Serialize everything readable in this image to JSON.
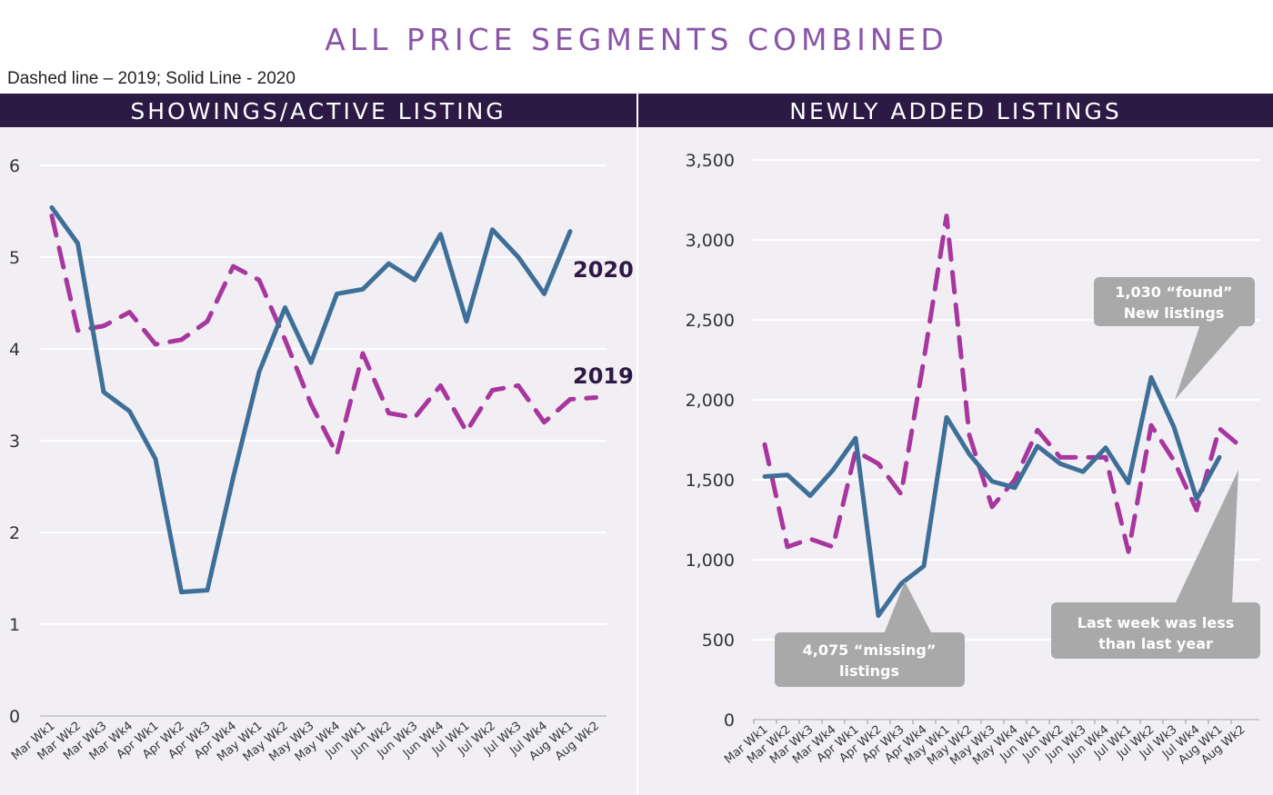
{
  "header": {
    "title": "ALL PRICE SEGMENTS COMBINED",
    "note": "Dashed line – 2019; Solid Line - 2020"
  },
  "colors": {
    "y2020": "#3e6f98",
    "y2019": "#a8369e",
    "header_bar": "#2c1a45",
    "title": "#8a55a8",
    "callout": "#a9a9a9"
  },
  "chart_data": [
    {
      "type": "line",
      "title": "SHOWINGS/ACTIVE LISTING",
      "categories": [
        "Mar Wk1",
        "Mar Wk2",
        "Mar Wk3",
        "Mar Wk4",
        "Apr Wk1",
        "Apr Wk2",
        "Apr Wk3",
        "Apr Wk4",
        "May Wk1",
        "May Wk2",
        "May Wk3",
        "May Wk4",
        "Jun Wk1",
        "Jun Wk2",
        "Jun Wk3",
        "Jun Wk4",
        "Jul Wk1",
        "Jul Wk2",
        "Jul Wk3",
        "Jul Wk4",
        "Aug Wk1",
        "Aug Wk2"
      ],
      "yticks": [
        "0",
        "1",
        "2",
        "3",
        "4",
        "5",
        "6"
      ],
      "ylim": [
        0,
        6
      ],
      "grid": true,
      "series": [
        {
          "name": "2020",
          "style": "solid",
          "values": [
            5.54,
            5.15,
            3.53,
            3.32,
            2.8,
            1.35,
            1.37,
            2.6,
            3.75,
            4.45,
            3.85,
            4.6,
            4.65,
            4.93,
            4.75,
            5.25,
            4.3,
            5.3,
            5.0,
            4.6,
            5.28,
            null
          ]
        },
        {
          "name": "2019",
          "style": "dashed",
          "values": [
            5.45,
            4.2,
            4.25,
            4.4,
            4.05,
            4.1,
            4.3,
            4.9,
            4.75,
            4.1,
            3.4,
            2.85,
            3.95,
            3.3,
            3.25,
            3.6,
            3.1,
            3.55,
            3.6,
            3.2,
            3.45,
            3.47
          ]
        }
      ]
    },
    {
      "type": "line",
      "title": "NEWLY ADDED LISTINGS",
      "categories": [
        "Mar Wk1",
        "Mar Wk2",
        "Mar Wk3",
        "Mar Wk4",
        "Apr Wk1",
        "Apr Wk2",
        "Apr Wk3",
        "Apr Wk4",
        "May Wk1",
        "May Wk2",
        "May Wk3",
        "May Wk4",
        "Jun Wk1",
        "Jun Wk2",
        "Jun Wk3",
        "Jun Wk4",
        "Jul Wk1",
        "Jul Wk2",
        "Jul Wk3",
        "Jul Wk4",
        "Aug Wk1",
        "Aug Wk2"
      ],
      "yticks": [
        "0",
        "500",
        "1,000",
        "1,500",
        "2,000",
        "2,500",
        "3,000",
        "3,500"
      ],
      "ylim": [
        0,
        3500
      ],
      "grid": true,
      "series": [
        {
          "style": "solid",
          "values": [
            1520,
            1530,
            1400,
            1560,
            1760,
            650,
            850,
            960,
            1890,
            1660,
            1490,
            1450,
            1710,
            1600,
            1550,
            1700,
            1480,
            2140,
            1830,
            1380,
            1640,
            null
          ]
        },
        {
          "style": "dashed",
          "values": [
            1720,
            1080,
            1130,
            1080,
            1680,
            1600,
            1410,
            2250,
            3150,
            1780,
            1330,
            1500,
            1810,
            1640,
            1640,
            1640,
            1050,
            1840,
            1620,
            1310,
            1820,
            1700
          ]
        }
      ],
      "annotations": [
        {
          "line1": "4,075 “missing”",
          "line2": "listings"
        },
        {
          "line1": "1,030 “found”",
          "line2": "New listings"
        },
        {
          "line1": "Last week was less",
          "line2": "than last year"
        }
      ]
    }
  ]
}
